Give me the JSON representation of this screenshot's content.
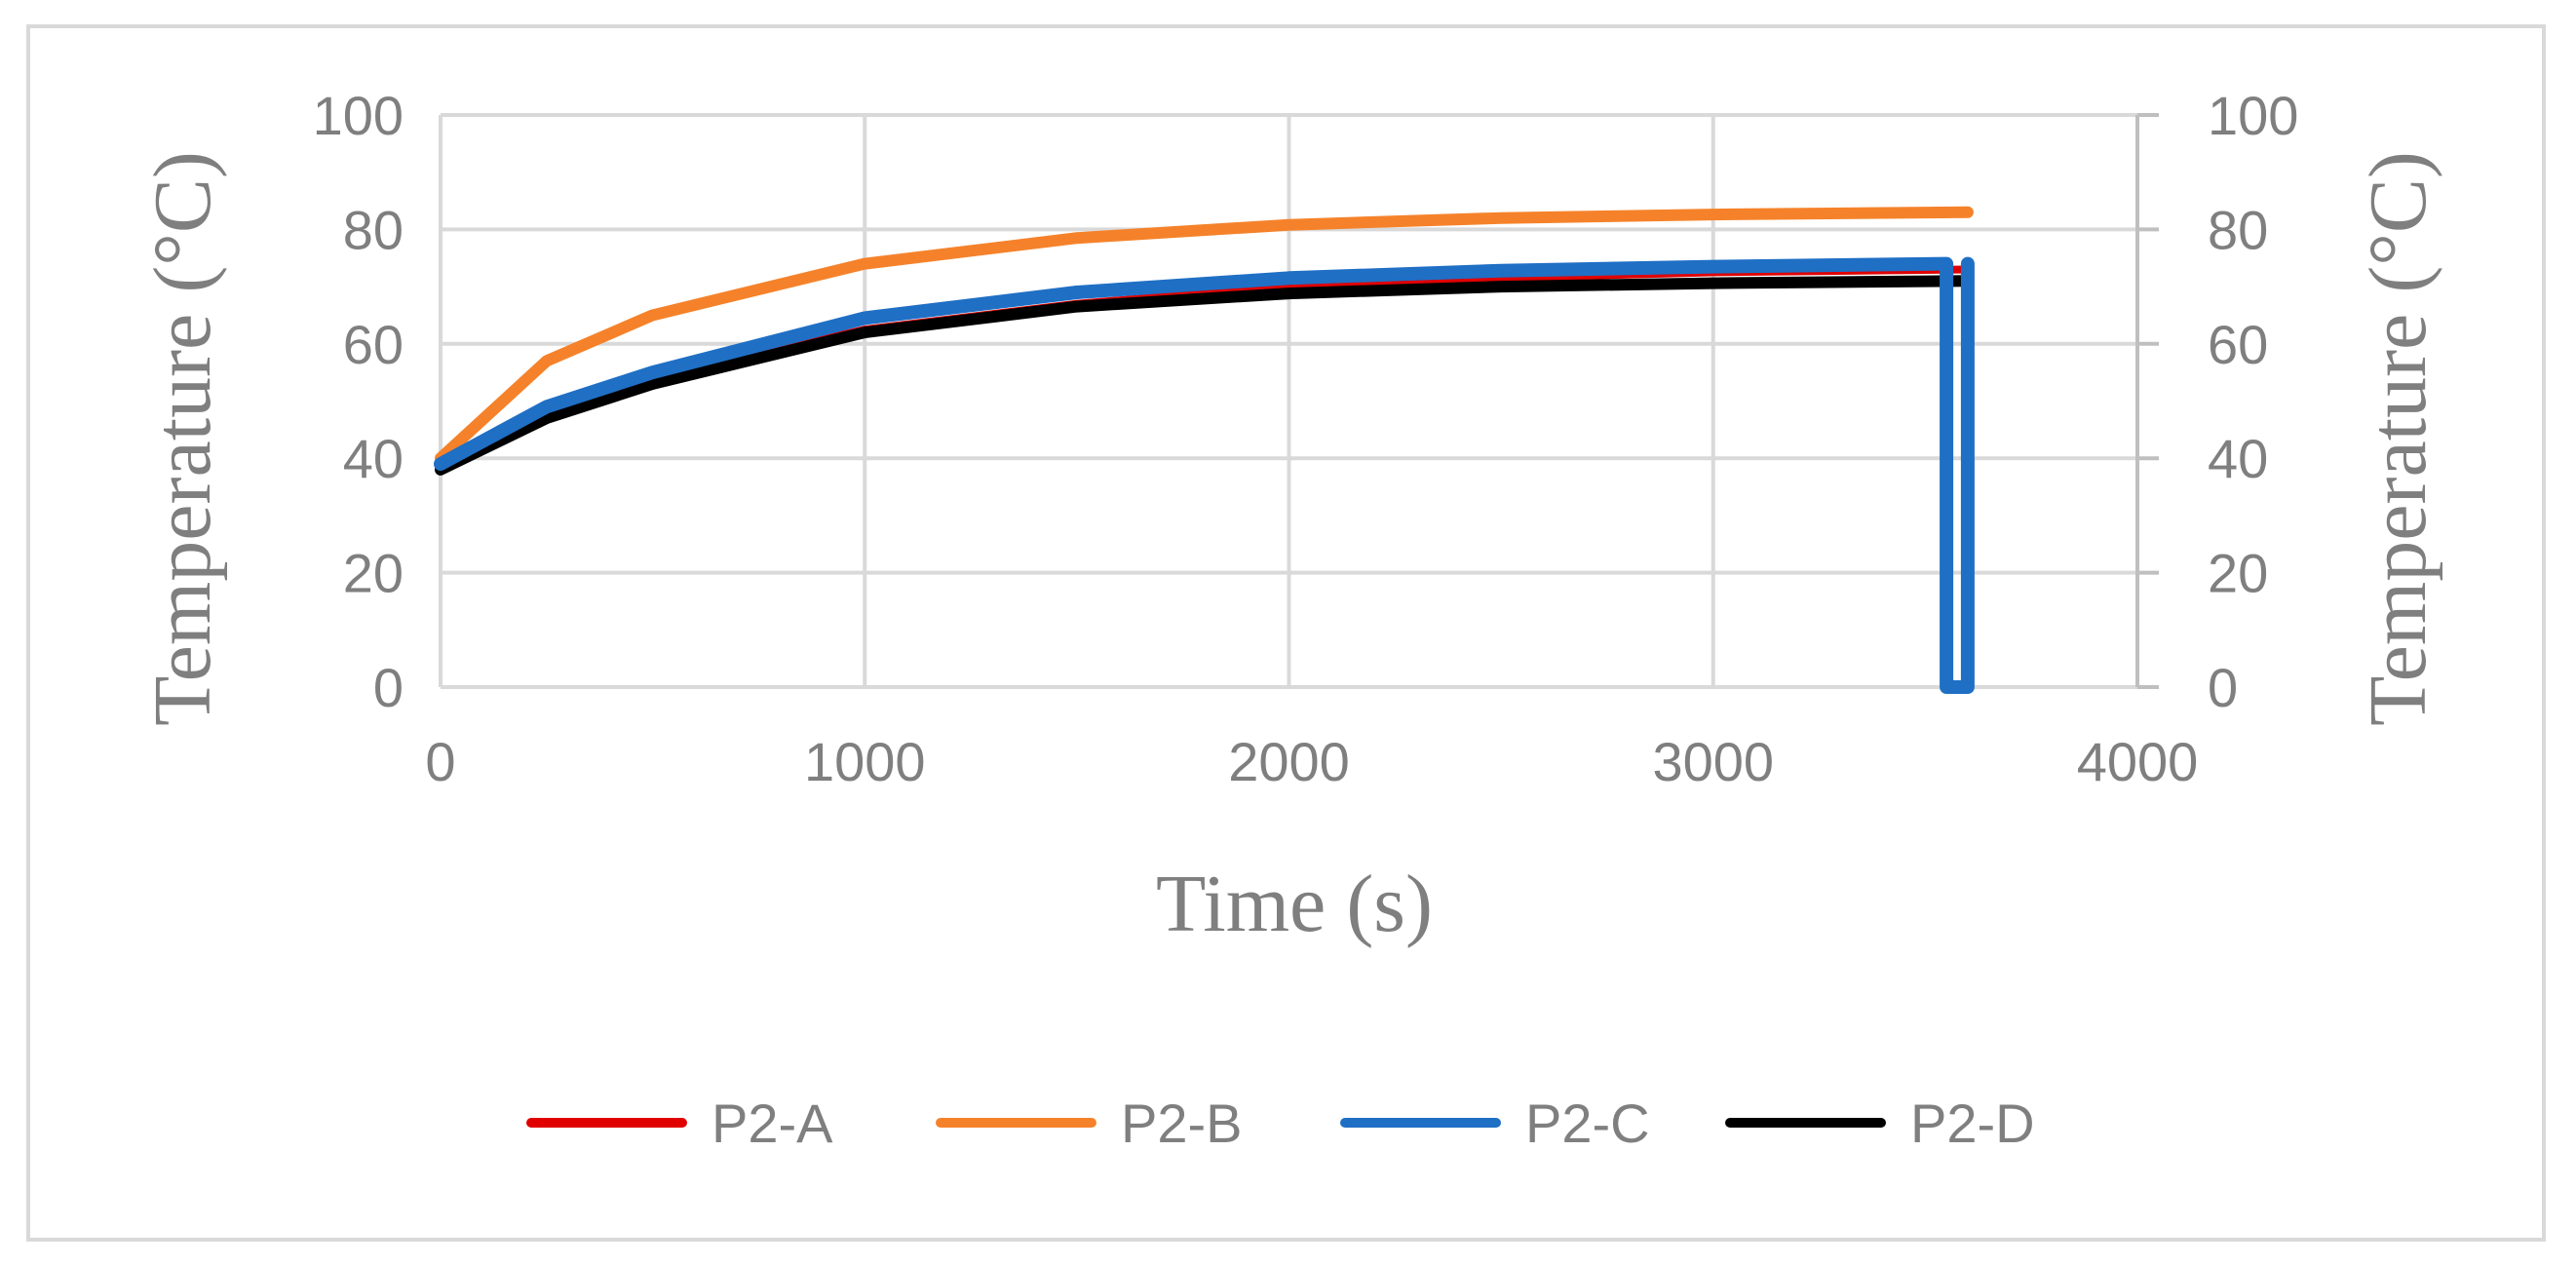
{
  "chart_data": {
    "type": "line",
    "title": "",
    "xlabel": "Time (s)",
    "ylabel": "Temperature (°C)",
    "y2label": "Temperature (°C)",
    "xlim": [
      0,
      4000
    ],
    "ylim": [
      0,
      100
    ],
    "xticks": [
      "0",
      "1000",
      "2000",
      "3000",
      "4000"
    ],
    "yticks": [
      "0",
      "20",
      "40",
      "60",
      "80",
      "100"
    ],
    "grid": true,
    "legend_position": "bottom",
    "colors": {
      "P2-A": "#e00000",
      "P2-B": "#f5822a",
      "P2-C": "#1f6fc5",
      "P2-D": "#000000"
    },
    "series": [
      {
        "name": "P2-A",
        "x": [
          0,
          250,
          500,
          1000,
          1500,
          2000,
          2500,
          3000,
          3600
        ],
        "y": [
          39,
          48,
          54,
          62.5,
          67,
          70,
          71.5,
          72.5,
          73
        ]
      },
      {
        "name": "P2-B",
        "x": [
          0,
          250,
          500,
          1000,
          1500,
          2000,
          2500,
          3000,
          3600
        ],
        "y": [
          40,
          57,
          65,
          74,
          78.5,
          80.8,
          82,
          82.6,
          83
        ]
      },
      {
        "name": "P2-C",
        "x": [
          0,
          250,
          500,
          1000,
          1500,
          2000,
          2500,
          3000,
          3550,
          3550,
          3600,
          3600
        ],
        "y": [
          39,
          49,
          55,
          64.5,
          69,
          71.5,
          72.8,
          73.5,
          74,
          0,
          0,
          74
        ]
      },
      {
        "name": "P2-D",
        "x": [
          0,
          250,
          500,
          1000,
          1500,
          2000,
          2500,
          3000,
          3600
        ],
        "y": [
          38,
          47,
          53,
          62,
          66.5,
          68.8,
          70,
          70.6,
          71
        ]
      }
    ]
  }
}
